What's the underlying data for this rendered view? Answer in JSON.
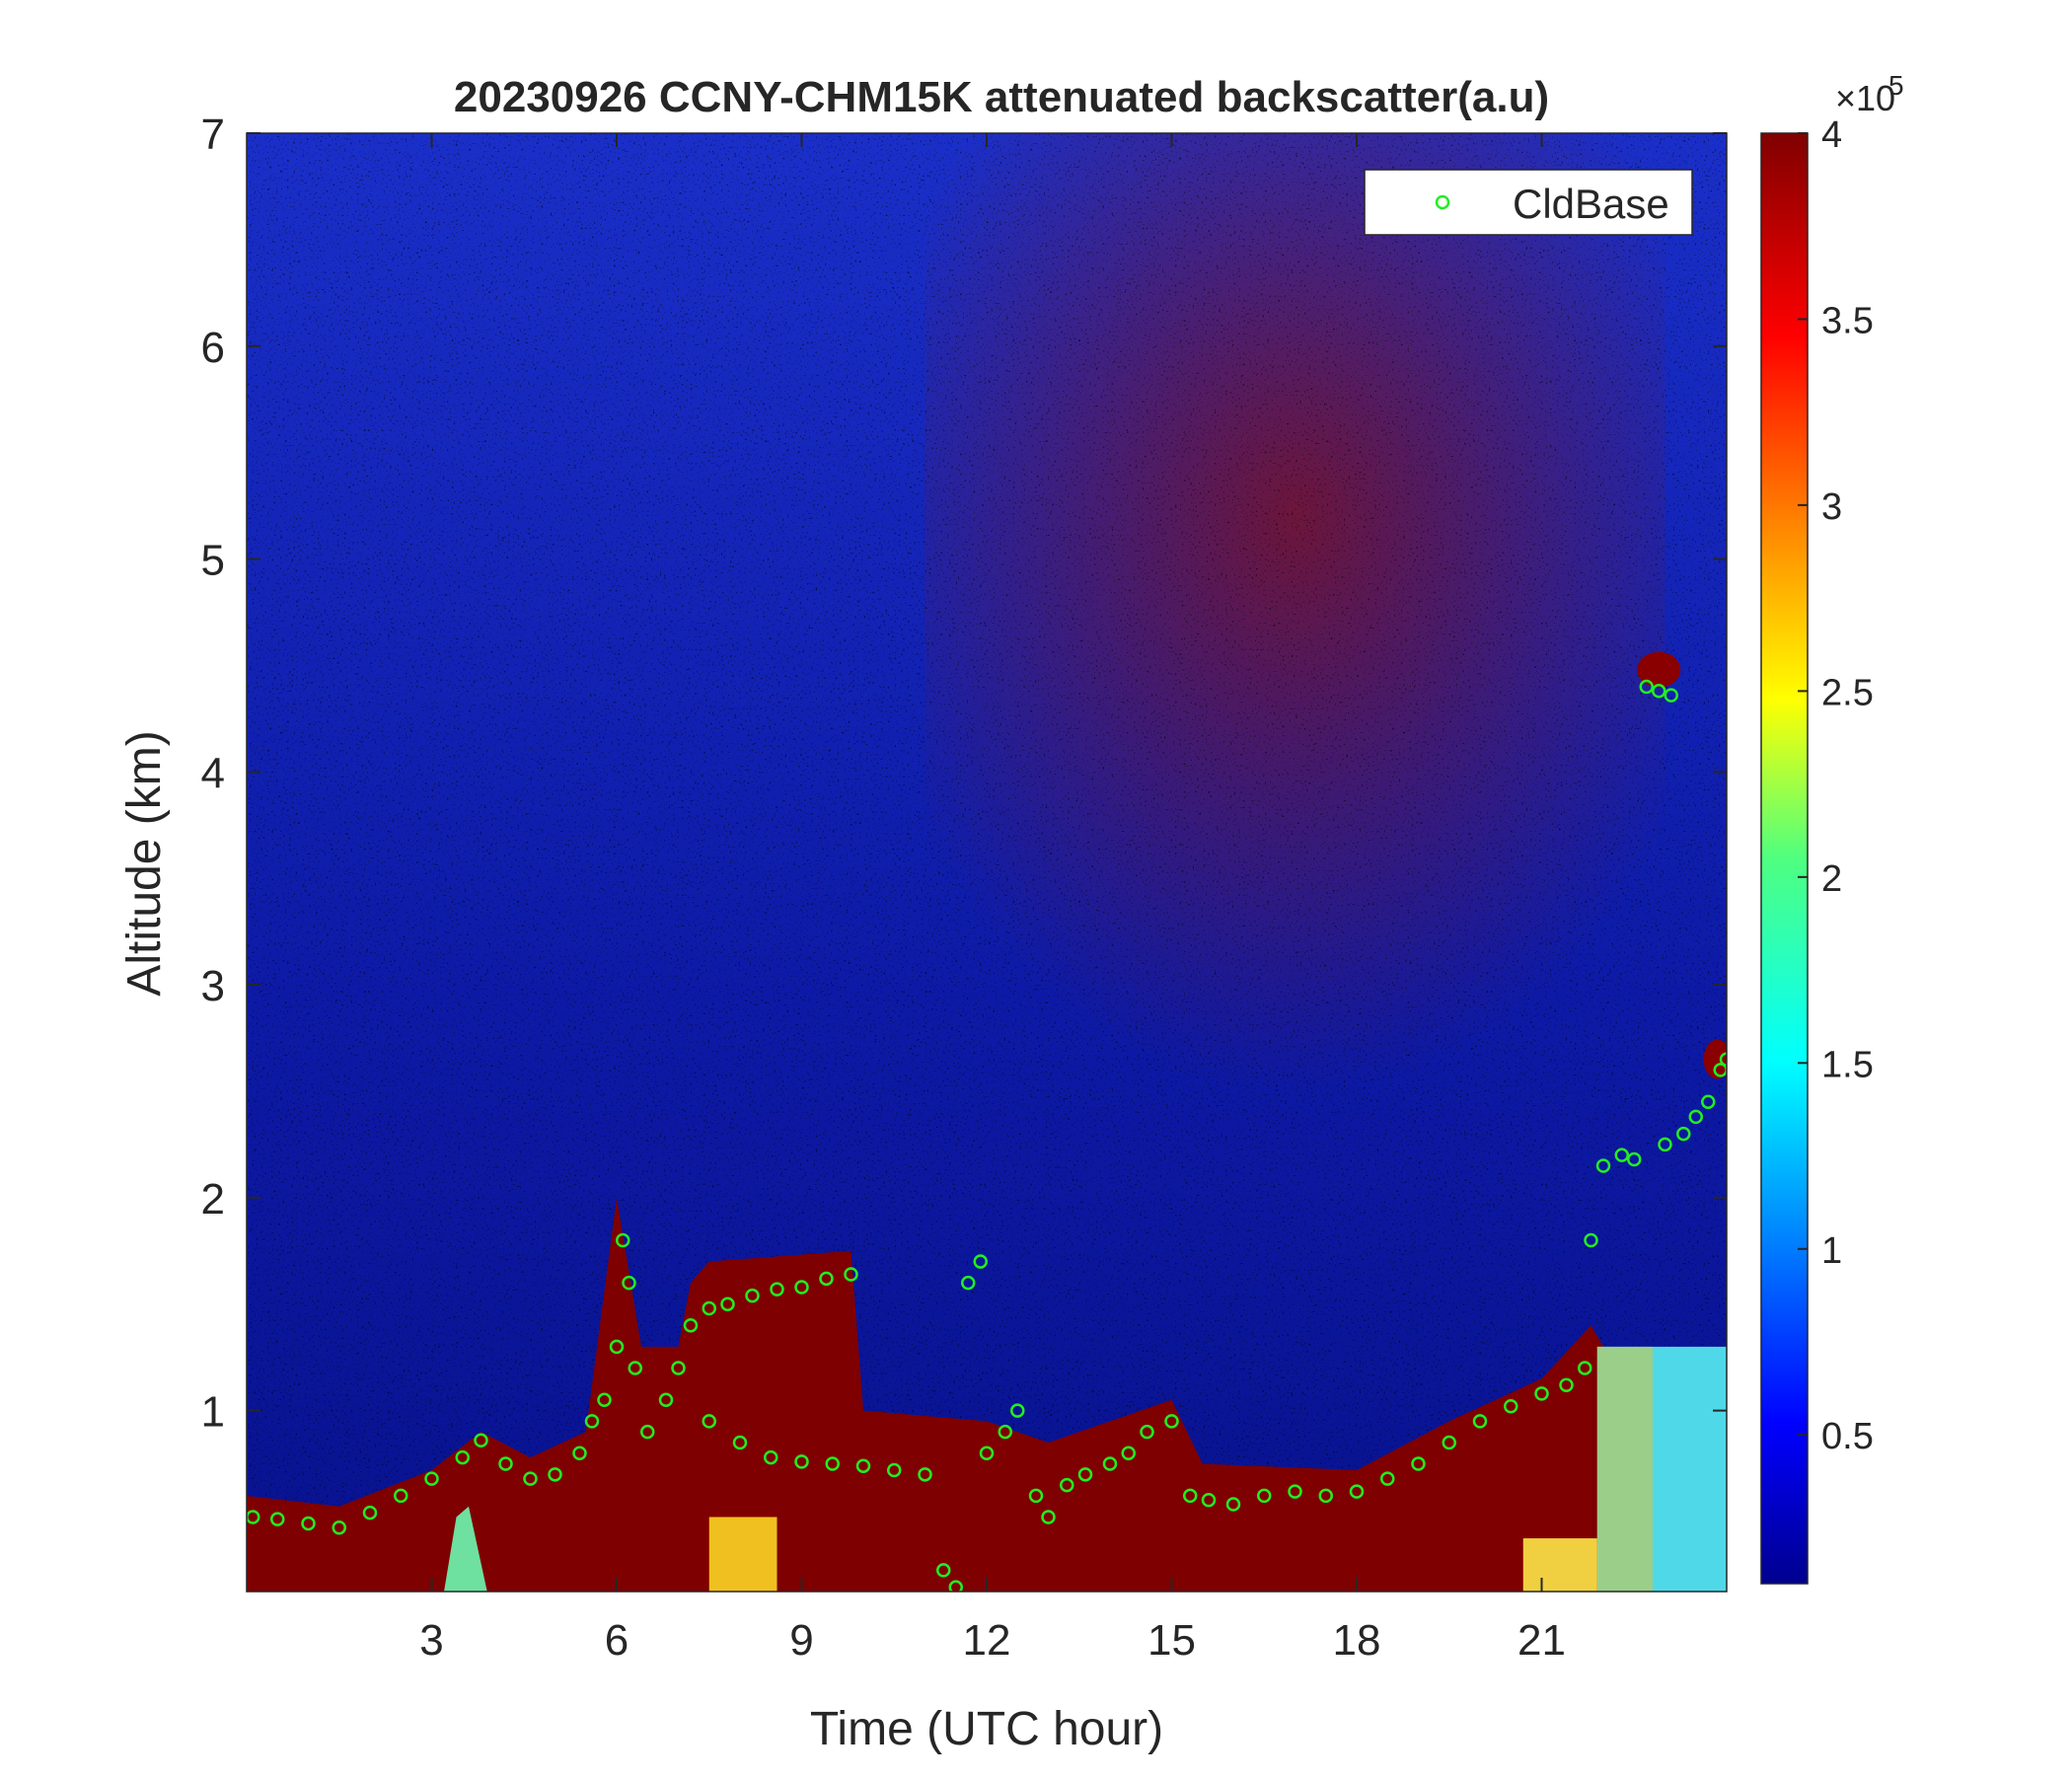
{
  "chart_data": {
    "type": "heatmap",
    "title": "20230926 CCNY-CHM15K attenuated backscatter(a.u)",
    "xlabel": "Time (UTC hour)",
    "ylabel": "Altitude (km)",
    "xlim": [
      0,
      24
    ],
    "ylim": [
      0.15,
      7
    ],
    "x_ticks": [
      3,
      6,
      9,
      12,
      15,
      18,
      21
    ],
    "y_ticks": [
      1,
      2,
      3,
      4,
      5,
      6,
      7
    ],
    "colorbar": {
      "colormap": "jet",
      "range": [
        0.1,
        4
      ],
      "ticks": [
        0.5,
        1,
        1.5,
        2,
        2.5,
        3,
        3.5,
        4
      ],
      "exponent_label": "×10",
      "exponent": "5"
    },
    "legend": {
      "entries": [
        "CldBase"
      ],
      "location": "top-right"
    },
    "colors": {
      "cloud_base_marker": "#22ee22",
      "axis_text": "#262626"
    },
    "series": [
      {
        "name": "CldBase",
        "marker": "circle",
        "points": [
          [
            0.1,
            0.5
          ],
          [
            0.5,
            0.49
          ],
          [
            1.0,
            0.47
          ],
          [
            1.5,
            0.45
          ],
          [
            2.0,
            0.52
          ],
          [
            2.5,
            0.6
          ],
          [
            3.0,
            0.68
          ],
          [
            3.5,
            0.78
          ],
          [
            3.8,
            0.86
          ],
          [
            4.2,
            0.75
          ],
          [
            4.6,
            0.68
          ],
          [
            5.0,
            0.7
          ],
          [
            5.4,
            0.8
          ],
          [
            5.6,
            0.95
          ],
          [
            5.8,
            1.05
          ],
          [
            6.0,
            1.3
          ],
          [
            6.1,
            1.8
          ],
          [
            6.2,
            1.6
          ],
          [
            6.3,
            1.2
          ],
          [
            6.5,
            0.9
          ],
          [
            6.8,
            1.05
          ],
          [
            7.0,
            1.2
          ],
          [
            7.2,
            1.4
          ],
          [
            7.5,
            1.48
          ],
          [
            7.8,
            1.5
          ],
          [
            8.2,
            1.54
          ],
          [
            8.6,
            1.57
          ],
          [
            9.0,
            1.58
          ],
          [
            9.4,
            1.62
          ],
          [
            9.8,
            1.64
          ],
          [
            7.5,
            0.95
          ],
          [
            8.0,
            0.85
          ],
          [
            8.5,
            0.78
          ],
          [
            9.0,
            0.76
          ],
          [
            9.5,
            0.75
          ],
          [
            10.0,
            0.74
          ],
          [
            10.5,
            0.72
          ],
          [
            11.0,
            0.7
          ],
          [
            11.3,
            0.25
          ],
          [
            11.5,
            0.17
          ],
          [
            11.7,
            1.6
          ],
          [
            11.9,
            1.7
          ],
          [
            12.0,
            0.8
          ],
          [
            12.3,
            0.9
          ],
          [
            12.5,
            1.0
          ],
          [
            12.8,
            0.6
          ],
          [
            13.0,
            0.5
          ],
          [
            13.3,
            0.65
          ],
          [
            13.6,
            0.7
          ],
          [
            14.0,
            0.75
          ],
          [
            14.3,
            0.8
          ],
          [
            14.6,
            0.9
          ],
          [
            15.0,
            0.95
          ],
          [
            15.3,
            0.6
          ],
          [
            15.6,
            0.58
          ],
          [
            16.0,
            0.56
          ],
          [
            16.5,
            0.6
          ],
          [
            17.0,
            0.62
          ],
          [
            17.5,
            0.6
          ],
          [
            18.0,
            0.62
          ],
          [
            18.5,
            0.68
          ],
          [
            19.0,
            0.75
          ],
          [
            19.5,
            0.85
          ],
          [
            20.0,
            0.95
          ],
          [
            20.5,
            1.02
          ],
          [
            21.0,
            1.08
          ],
          [
            21.4,
            1.12
          ],
          [
            21.7,
            1.2
          ],
          [
            21.8,
            1.8
          ],
          [
            22.0,
            2.15
          ],
          [
            22.3,
            2.2
          ],
          [
            22.5,
            2.18
          ],
          [
            22.7,
            4.4
          ],
          [
            22.9,
            4.38
          ],
          [
            23.1,
            4.36
          ],
          [
            23.0,
            2.25
          ],
          [
            23.3,
            2.3
          ],
          [
            23.5,
            2.38
          ],
          [
            23.7,
            2.45
          ],
          [
            23.9,
            2.6
          ],
          [
            24.0,
            2.65
          ]
        ]
      }
    ]
  }
}
